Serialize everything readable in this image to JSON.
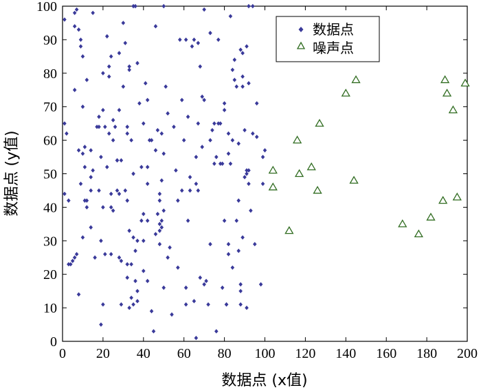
{
  "chart_data": {
    "type": "scatter",
    "xlabel": "数据点 (x值)",
    "ylabel": "数据点 (y值)",
    "xlim": [
      0,
      200
    ],
    "ylim": [
      0,
      100
    ],
    "xticks": [
      "0",
      "20",
      "40",
      "60",
      "80",
      "100",
      "120",
      "140",
      "160",
      "180",
      "200"
    ],
    "yticks": [
      "0",
      "10",
      "20",
      "30",
      "40",
      "50",
      "60",
      "70",
      "80",
      "90",
      "100"
    ],
    "grid": false,
    "legend_position": "top-right",
    "colors": {
      "data": "#3a3a9a",
      "noise": "#2f6b1f"
    },
    "series": [
      {
        "name": "数据点",
        "marker": "diamond",
        "points": [
          [
            1,
            65
          ],
          [
            1,
            44
          ],
          [
            1,
            96
          ],
          [
            2,
            62
          ],
          [
            3,
            42
          ],
          [
            3,
            23
          ],
          [
            4,
            23
          ],
          [
            5,
            24
          ],
          [
            6,
            25
          ],
          [
            6,
            94
          ],
          [
            6,
            75
          ],
          [
            6,
            98
          ],
          [
            7,
            26
          ],
          [
            7,
            99
          ],
          [
            8,
            14
          ],
          [
            8,
            57
          ],
          [
            8,
            93
          ],
          [
            9,
            47
          ],
          [
            9,
            88
          ],
          [
            9,
            90
          ],
          [
            10,
            70
          ],
          [
            10,
            85
          ],
          [
            10,
            56
          ],
          [
            10,
            31
          ],
          [
            11,
            58
          ],
          [
            11,
            42
          ],
          [
            11,
            52
          ],
          [
            12,
            40
          ],
          [
            12,
            42
          ],
          [
            12,
            78
          ],
          [
            14,
            57
          ],
          [
            14,
            45
          ],
          [
            14,
            34
          ],
          [
            14,
            49
          ],
          [
            15,
            51
          ],
          [
            15,
            98
          ],
          [
            17,
            64
          ],
          [
            16,
            25
          ],
          [
            18,
            67
          ],
          [
            18,
            64
          ],
          [
            18,
            45
          ],
          [
            19,
            55
          ],
          [
            19,
            30
          ],
          [
            19,
            5
          ],
          [
            20,
            80
          ],
          [
            20,
            69
          ],
          [
            20,
            40
          ],
          [
            20,
            11
          ],
          [
            21,
            26
          ],
          [
            21,
            64
          ],
          [
            22,
            91
          ],
          [
            22,
            52
          ],
          [
            23,
            82
          ],
          [
            23,
            62
          ],
          [
            23,
            79
          ],
          [
            24,
            85
          ],
          [
            24,
            44
          ],
          [
            24,
            40
          ],
          [
            24,
            26
          ],
          [
            25,
            60
          ],
          [
            25,
            39
          ],
          [
            25,
            66
          ],
          [
            26,
            64
          ],
          [
            27,
            54
          ],
          [
            27,
            54
          ],
          [
            27,
            45
          ],
          [
            28,
            86
          ],
          [
            28,
            69
          ],
          [
            28,
            44
          ],
          [
            28,
            25
          ],
          [
            29,
            24
          ],
          [
            29,
            11
          ],
          [
            29,
            54
          ],
          [
            30,
            95
          ],
          [
            30,
            76
          ],
          [
            31,
            89
          ],
          [
            31,
            45
          ],
          [
            32,
            64
          ],
          [
            32,
            62
          ],
          [
            32,
            42
          ],
          [
            32,
            23
          ],
          [
            32,
            19
          ],
          [
            33,
            82
          ],
          [
            33,
            81
          ],
          [
            33,
            33
          ],
          [
            33,
            10
          ],
          [
            34,
            60
          ],
          [
            34,
            23
          ],
          [
            34,
            13
          ],
          [
            35,
            100
          ],
          [
            35,
            50
          ],
          [
            35,
            31
          ],
          [
            35,
            11
          ],
          [
            36,
            100
          ],
          [
            36,
            27
          ],
          [
            36,
            18
          ],
          [
            37,
            83
          ],
          [
            37,
            30
          ],
          [
            37,
            15
          ],
          [
            37,
            12
          ],
          [
            38,
            71
          ],
          [
            39,
            36
          ],
          [
            39,
            52
          ],
          [
            40,
            65
          ],
          [
            40,
            38
          ],
          [
            40,
            30
          ],
          [
            40,
            21
          ],
          [
            41,
            77
          ],
          [
            42,
            72
          ],
          [
            42,
            52
          ],
          [
            42,
            47
          ],
          [
            42,
            36
          ],
          [
            42,
            18
          ],
          [
            43,
            60
          ],
          [
            44,
            60
          ],
          [
            44,
            9
          ],
          [
            45,
            3
          ],
          [
            46,
            94
          ],
          [
            46,
            57
          ],
          [
            46,
            32
          ],
          [
            47,
            63
          ],
          [
            47,
            38
          ],
          [
            48,
            44
          ],
          [
            48,
            42
          ],
          [
            48,
            35
          ],
          [
            48,
            33
          ],
          [
            48,
            29
          ],
          [
            49,
            62
          ],
          [
            49,
            48
          ],
          [
            49,
            36
          ],
          [
            49,
            34
          ],
          [
            50,
            100
          ],
          [
            50,
            56
          ],
          [
            50,
            39
          ],
          [
            50,
            16
          ],
          [
            51,
            76
          ],
          [
            52,
            68
          ],
          [
            52,
            25
          ],
          [
            53,
            28
          ],
          [
            54,
            8
          ],
          [
            55,
            64
          ],
          [
            56,
            51
          ],
          [
            57,
            42
          ],
          [
            57,
            22
          ],
          [
            58,
            90
          ],
          [
            59,
            45
          ],
          [
            59,
            72
          ],
          [
            60,
            60
          ],
          [
            61,
            90
          ],
          [
            61,
            16
          ],
          [
            61,
            11
          ],
          [
            62,
            67
          ],
          [
            62,
            36
          ],
          [
            63,
            49
          ],
          [
            63,
            45
          ],
          [
            64,
            88
          ],
          [
            65,
            90
          ],
          [
            65,
            12
          ],
          [
            66,
            55
          ],
          [
            66,
            1
          ],
          [
            66,
            47
          ],
          [
            67,
            89
          ],
          [
            67,
            65
          ],
          [
            67,
            45
          ],
          [
            68,
            82
          ],
          [
            68,
            19
          ],
          [
            69,
            73
          ],
          [
            69,
            58
          ],
          [
            70,
            72
          ],
          [
            70,
            99
          ],
          [
            70,
            17
          ],
          [
            71,
            18
          ],
          [
            72,
            11
          ],
          [
            73,
            92
          ],
          [
            73,
            60
          ],
          [
            73,
            29
          ],
          [
            74,
            63
          ],
          [
            75,
            65
          ],
          [
            75,
            53
          ],
          [
            76,
            55
          ],
          [
            76,
            3
          ],
          [
            77,
            90
          ],
          [
            77,
            65
          ],
          [
            78,
            65
          ],
          [
            78,
            53
          ],
          [
            79,
            53
          ],
          [
            79,
            16
          ],
          [
            80,
            69
          ],
          [
            80,
            71
          ],
          [
            80,
            36
          ],
          [
            81,
            11
          ],
          [
            81,
            11
          ],
          [
            82,
            62
          ],
          [
            82,
            56
          ],
          [
            82,
            29
          ],
          [
            82,
            26
          ],
          [
            83,
            53
          ],
          [
            83,
            97
          ],
          [
            84,
            81
          ],
          [
            84,
            60
          ],
          [
            84,
            22
          ],
          [
            85,
            84
          ],
          [
            85,
            78
          ],
          [
            86,
            76
          ],
          [
            86,
            36
          ],
          [
            87,
            42
          ],
          [
            87,
            59
          ],
          [
            87,
            27
          ],
          [
            88,
            87
          ],
          [
            88,
            17
          ],
          [
            88,
            15
          ],
          [
            88,
            11
          ],
          [
            89,
            86
          ],
          [
            89,
            79
          ],
          [
            89,
            76
          ],
          [
            89,
            31
          ],
          [
            90,
            63
          ],
          [
            90,
            49
          ],
          [
            91,
            50
          ],
          [
            91,
            51
          ],
          [
            91,
            10
          ],
          [
            91,
            88
          ],
          [
            92,
            100
          ],
          [
            92,
            51
          ],
          [
            92,
            47
          ],
          [
            92,
            77
          ],
          [
            93,
            39
          ],
          [
            94,
            100
          ],
          [
            94,
            62
          ],
          [
            95,
            29
          ],
          [
            96,
            71
          ],
          [
            96,
            61
          ],
          [
            98,
            17
          ],
          [
            99,
            55
          ],
          [
            99,
            47
          ],
          [
            100,
            57
          ]
        ]
      },
      {
        "name": "噪声点",
        "marker": "triangle",
        "points": [
          [
            104,
            51
          ],
          [
            104,
            46
          ],
          [
            112,
            33
          ],
          [
            116,
            60
          ],
          [
            117,
            50
          ],
          [
            123,
            52
          ],
          [
            126,
            45
          ],
          [
            127,
            65
          ],
          [
            140,
            74
          ],
          [
            144,
            48
          ],
          [
            145,
            78
          ],
          [
            168,
            35
          ],
          [
            176,
            32
          ],
          [
            182,
            37
          ],
          [
            188,
            42
          ],
          [
            189,
            78
          ],
          [
            190,
            74
          ],
          [
            193,
            69
          ],
          [
            195,
            43
          ],
          [
            199,
            77
          ]
        ]
      }
    ]
  }
}
